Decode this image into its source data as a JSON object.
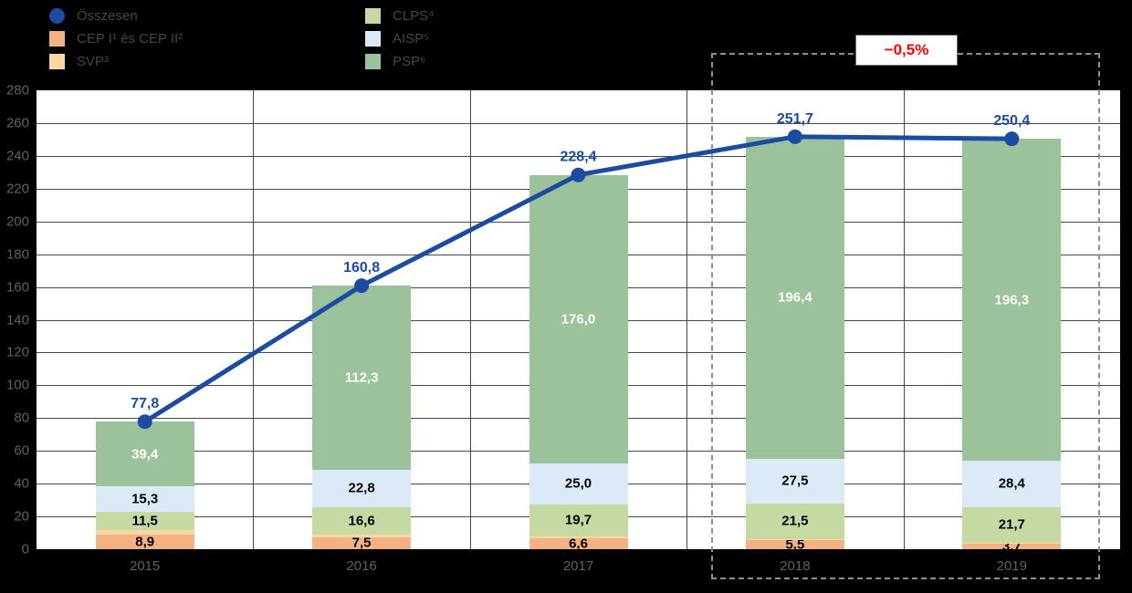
{
  "legend": {
    "rows_per_column": 3,
    "items": [
      {
        "label": "Összesen",
        "marker": "circle",
        "color": "#1b4ca1"
      },
      {
        "label": "CEP I¹ és CEP II²",
        "marker": "square",
        "color": "#f4b183"
      },
      {
        "label": "SVP³",
        "marker": "square",
        "color": "#fcd7a1"
      },
      {
        "label": "CLPS⁴",
        "marker": "square",
        "color": "#c6d9a2"
      },
      {
        "label": "AISP⁵",
        "marker": "square",
        "color": "#dceaf7"
      },
      {
        "label": "PSP⁶",
        "marker": "square",
        "color": "#9cc29c"
      }
    ]
  },
  "annotation": {
    "label": "−0,5%",
    "color": "#ff0000"
  },
  "chart_data": {
    "type": "bar",
    "subtype": "stacked-bars-with-total-line",
    "categories": [
      "2015",
      "2016",
      "2017",
      "2018",
      "2019"
    ],
    "series": [
      {
        "name": "CEP I és CEP II",
        "color": "#f4b183",
        "values": [
          8.9,
          7.5,
          6.6,
          5.5,
          3.7
        ],
        "show_labels": true
      },
      {
        "name": "SVP",
        "color": "#fcd7a1",
        "values": [
          2.7,
          1.6,
          1.1,
          0.8,
          0.3
        ],
        "show_labels": false
      },
      {
        "name": "CLPS",
        "color": "#c6d9a2",
        "values": [
          11.5,
          16.6,
          19.7,
          21.5,
          21.7
        ],
        "show_labels": true
      },
      {
        "name": "AISP",
        "color": "#dceaf7",
        "values": [
          15.3,
          22.8,
          25.0,
          27.5,
          28.4
        ],
        "show_labels": true
      },
      {
        "name": "PSP",
        "color": "#9cc29c",
        "values": [
          39.4,
          112.3,
          176.0,
          196.4,
          196.3
        ],
        "show_labels": true,
        "label_color": "#ffffff"
      }
    ],
    "line_series": {
      "name": "Összesen",
      "color": "#1b4ca1",
      "values": [
        77.8,
        160.8,
        228.4,
        251.7,
        250.4
      ]
    },
    "ylim": [
      0,
      280
    ],
    "ytick_step": 20,
    "decimal_separator": ",",
    "grid": "horizontal-and-category-vertical",
    "legend_position": "top-left",
    "highlight": {
      "categories": [
        "2018",
        "2019"
      ],
      "label": "−0,5%",
      "style": "dashed-box"
    }
  }
}
